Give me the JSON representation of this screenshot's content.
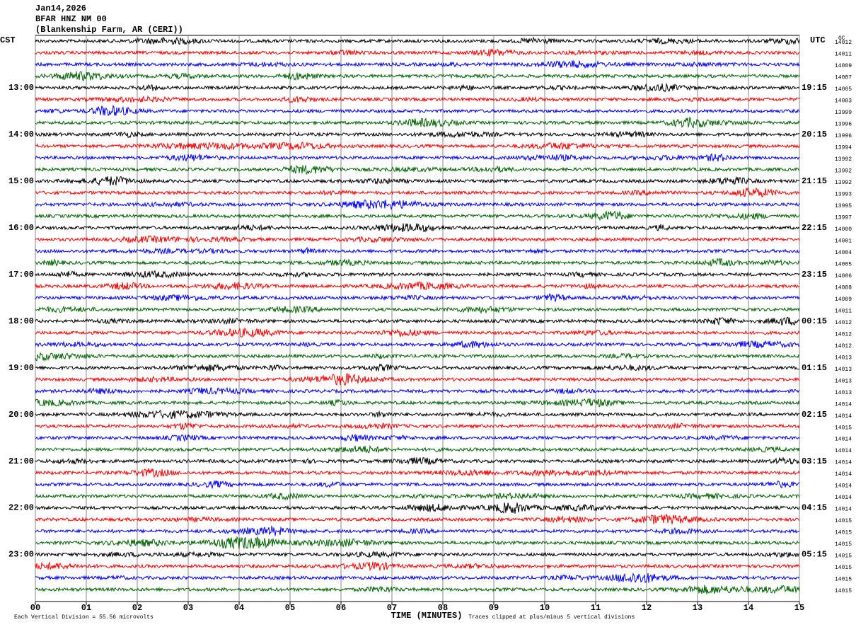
{
  "chart_data": {
    "type": "helicorder",
    "title": "Jan14,2026",
    "subtitle": "BFAR HNZ NM 00",
    "station": "(Blankenship Farm, AR (CERI))",
    "left_zone": "CST",
    "right_zone": "UTC",
    "right_corner": "GC",
    "xlabel": "TIME (MINUTES)",
    "scale_note": "Each Vertical Division =   55.56 microvolts",
    "clip_note": "Traces clipped at plus/minus 5 vertical divisions",
    "xlim": [
      0,
      15
    ],
    "xticks": [
      {
        "value": 0,
        "label": "00"
      },
      {
        "value": 1,
        "label": "01"
      },
      {
        "value": 2,
        "label": "02"
      },
      {
        "value": 3,
        "label": "03"
      },
      {
        "value": 4,
        "label": "04"
      },
      {
        "value": 5,
        "label": "05"
      },
      {
        "value": 6,
        "label": "06"
      },
      {
        "value": 7,
        "label": "07"
      },
      {
        "value": 8,
        "label": "08"
      },
      {
        "value": 9,
        "label": "09"
      },
      10,
      11,
      12,
      13,
      14,
      15
    ],
    "grid": true,
    "trace_colors": [
      "#000000",
      "#ff0000",
      "#0000ff",
      "#006400"
    ],
    "cst_labels": [
      null,
      null,
      null,
      null,
      "13:00",
      null,
      null,
      null,
      "14:00",
      null,
      null,
      null,
      "15:00",
      null,
      null,
      null,
      "16:00",
      null,
      null,
      null,
      "17:00",
      null,
      null,
      null,
      "18:00",
      null,
      null,
      null,
      "19:00",
      null,
      null,
      null,
      "20:00",
      null,
      null,
      null,
      "21:00",
      null,
      null,
      null,
      "22:00",
      null,
      null,
      null,
      "23:00",
      null,
      null,
      null
    ],
    "utc_labels": [
      null,
      null,
      null,
      null,
      "19:15",
      null,
      null,
      null,
      "20:15",
      null,
      null,
      null,
      "21:15",
      null,
      null,
      null,
      "22:15",
      null,
      null,
      null,
      "23:15",
      null,
      null,
      null,
      "00:15",
      null,
      null,
      null,
      "01:15",
      null,
      null,
      null,
      "02:15",
      null,
      null,
      null,
      "03:15",
      null,
      null,
      null,
      "04:15",
      null,
      null,
      null,
      "05:15",
      null,
      null,
      null
    ],
    "row_codes": [
      14012,
      14011,
      14009,
      14007,
      14005,
      14003,
      13999,
      13996,
      13996,
      13994,
      13992,
      13992,
      13992,
      13993,
      13995,
      13997,
      14000,
      14001,
      14004,
      14005,
      14006,
      14008,
      14009,
      14011,
      14012,
      14012,
      14012,
      14013,
      14013,
      14013,
      14013,
      14014,
      14014,
      14015,
      14014,
      14014,
      14014,
      14014,
      14014,
      14014,
      14014,
      14015,
      14015,
      14015,
      14015,
      14015,
      14015,
      14015
    ]
  }
}
